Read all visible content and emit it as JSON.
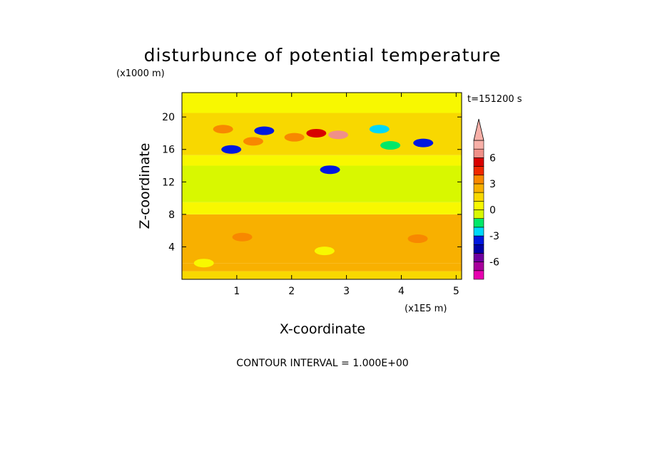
{
  "chart_data": {
    "type": "heatmap",
    "title": "disturbunce of potential temperature",
    "yunit_label": "(x1000 m)",
    "xunit_label": "(x1E5 m)",
    "time_label": "t=151200 s",
    "xlabel": "X-coordinate",
    "ylabel": "Z-coordinate",
    "xlim": [
      0,
      5.1
    ],
    "ylim": [
      0,
      23
    ],
    "xticks": [
      "1",
      "2",
      "3",
      "4",
      "5"
    ],
    "yticks": [
      "4",
      "8",
      "12",
      "16",
      "20"
    ],
    "colorbar": {
      "levels": [
        -8,
        -7,
        -6,
        -5,
        -4,
        -3,
        -2,
        -1,
        0,
        1,
        2,
        3,
        4,
        5,
        6,
        7,
        8
      ],
      "tick_labels": [
        "6",
        "3",
        "0",
        "-3",
        "-6"
      ],
      "colors": [
        "#e800b0",
        "#a8009c",
        "#7000a0",
        "#0000a8",
        "#0018e0",
        "#00d8f8",
        "#00e868",
        "#d8f800",
        "#f8f800",
        "#f8d800",
        "#f8b000",
        "#f88800",
        "#f02800",
        "#d80000",
        "#f09088",
        "#f8b0a8"
      ]
    },
    "note": "CONTOUR INTERVAL = 1.000E+00",
    "layers": [
      {
        "z_range": [
          0,
          1.0
        ],
        "value": 1.5
      },
      {
        "z_range": [
          1.0,
          2.0
        ],
        "value": 2.3
      },
      {
        "z_range": [
          2.0,
          8.0
        ],
        "value": 2.4
      },
      {
        "z_range": [
          8.0,
          9.5
        ],
        "value": 0.5
      },
      {
        "z_range": [
          9.5,
          14.0
        ],
        "value": -0.6
      },
      {
        "z_range": [
          14.0,
          15.3
        ],
        "value": 0.5
      },
      {
        "z_range": [
          15.3,
          20.5
        ],
        "value": 1.3
      },
      {
        "z_range": [
          20.5,
          23.0
        ],
        "value": 0.5
      }
    ],
    "features": [
      {
        "x": 2.45,
        "z": 18.0,
        "value": 5.2
      },
      {
        "x": 2.85,
        "z": 17.8,
        "value": 6.4
      },
      {
        "x": 2.05,
        "z": 17.5,
        "value": 3.5
      },
      {
        "x": 0.75,
        "z": 18.5,
        "value": 3.2
      },
      {
        "x": 1.3,
        "z": 17.0,
        "value": 3.0
      },
      {
        "x": 1.5,
        "z": 18.3,
        "value": -3.5
      },
      {
        "x": 2.7,
        "z": 13.5,
        "value": -3.5
      },
      {
        "x": 3.6,
        "z": 18.5,
        "value": -3.0
      },
      {
        "x": 4.4,
        "z": 16.8,
        "value": -3.5
      },
      {
        "x": 0.9,
        "z": 16.0,
        "value": -3.2
      },
      {
        "x": 3.8,
        "z": 16.5,
        "value": -1.2
      },
      {
        "x": 4.3,
        "z": 5.0,
        "value": 3.2
      },
      {
        "x": 1.1,
        "z": 5.2,
        "value": 3.2
      },
      {
        "x": 2.6,
        "z": 3.5,
        "value": 0.3
      },
      {
        "x": 0.4,
        "z": 2.0,
        "value": 0.4
      }
    ]
  }
}
